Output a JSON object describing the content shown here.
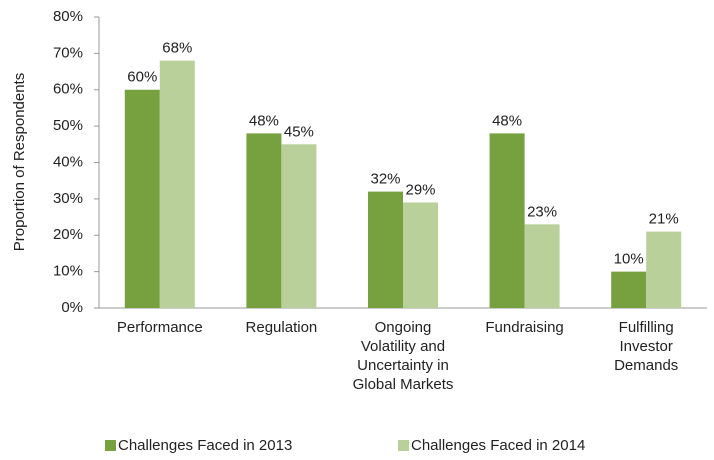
{
  "chart_data": {
    "type": "bar",
    "y_label": "Proportion of Respondents",
    "categories": [
      "Performance",
      "Regulation",
      "Ongoing Volatility and Uncertainty in Global Markets",
      "Fundraising",
      "Fulfilling Investor Demands"
    ],
    "series": [
      {
        "name": "Challenges Faced in 2013",
        "color": "#77a03e",
        "values": [
          60,
          48,
          32,
          48,
          10
        ],
        "value_labels": [
          "60%",
          "48%",
          "32%",
          "48%",
          "10%"
        ]
      },
      {
        "name": "Challenges Faced in 2014",
        "color": "#b9d09b",
        "values": [
          68,
          45,
          29,
          23,
          21
        ],
        "value_labels": [
          "68%",
          "45%",
          "29%",
          "23%",
          "21%"
        ]
      }
    ],
    "ylim": [
      0,
      80
    ],
    "yticks": [
      {
        "value": 0,
        "label": "0%"
      },
      {
        "value": 10,
        "label": "10%"
      },
      {
        "value": 20,
        "label": "20%"
      },
      {
        "value": 30,
        "label": "30%"
      },
      {
        "value": 40,
        "label": "40%"
      },
      {
        "value": 50,
        "label": "50%"
      },
      {
        "value": 60,
        "label": "60%"
      },
      {
        "value": 70,
        "label": "70%"
      },
      {
        "value": 80,
        "label": "80%"
      }
    ],
    "grid": false,
    "legend": "bottom"
  }
}
